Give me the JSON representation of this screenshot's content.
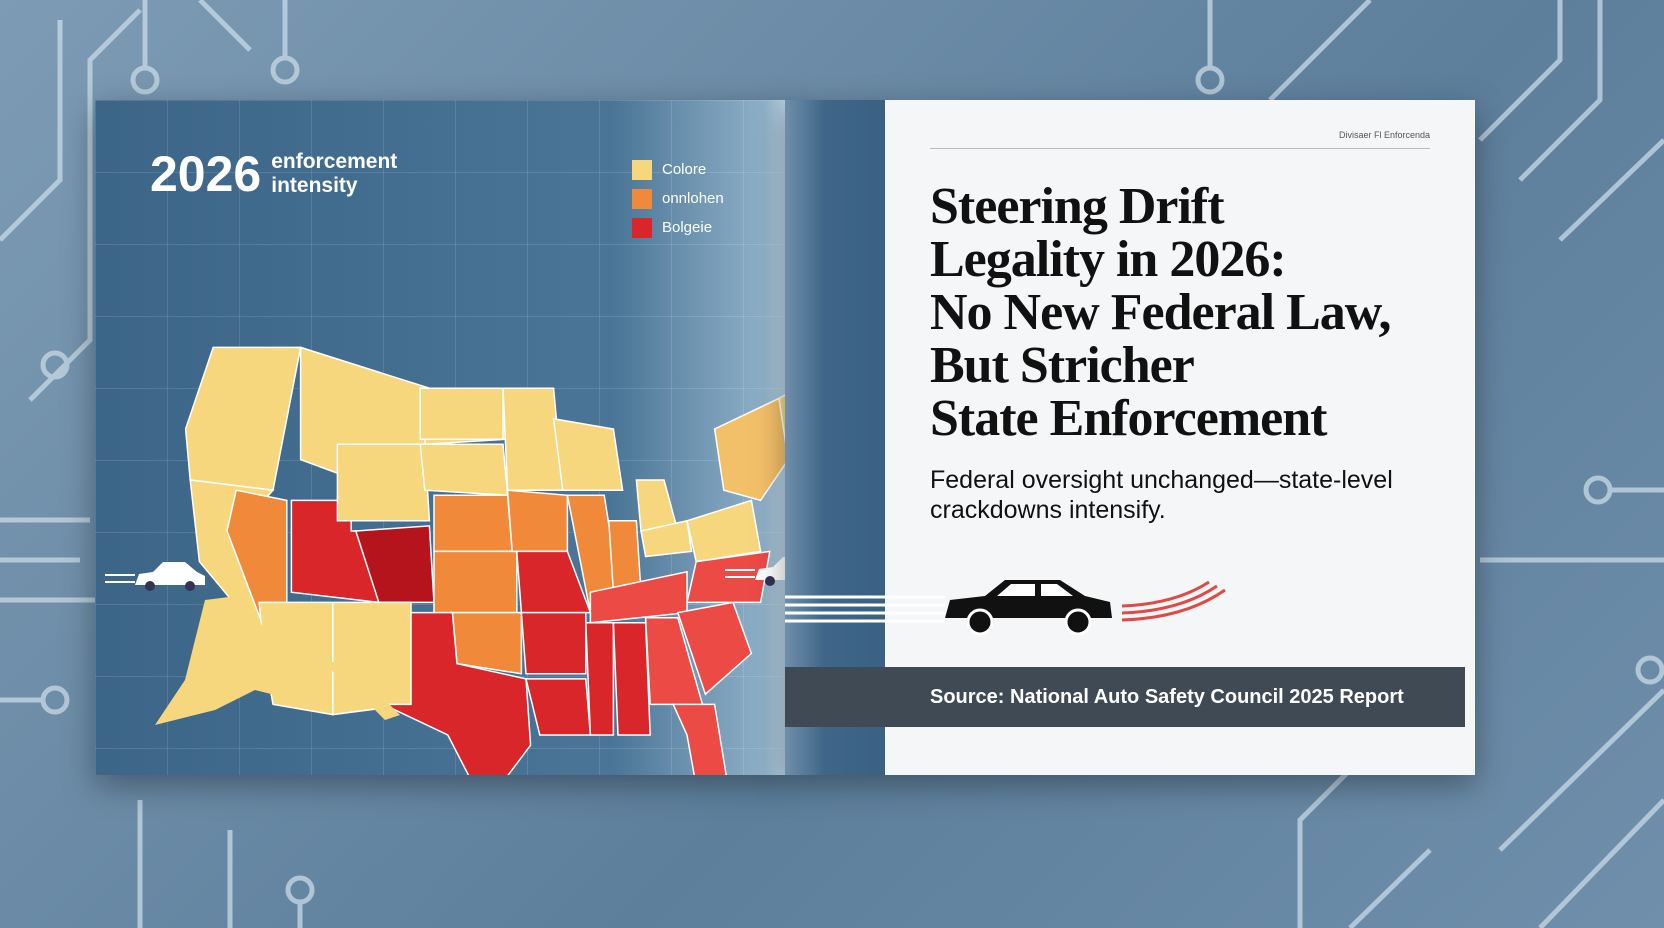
{
  "map_page": {
    "title_year": "2026",
    "title_line1": "enforcement",
    "title_line2": "intensity",
    "legend": [
      {
        "label": "Colore",
        "color": "#f7d77e"
      },
      {
        "label": "onnlohen",
        "color": "#f08a3a"
      },
      {
        "label": "Bolgeie",
        "color": "#d8262a"
      }
    ],
    "base_color": "#3f6a8a"
  },
  "article": {
    "header": "Divisaer Fl Enforcenda",
    "headline": [
      "Steering Drift",
      "Legality in 2026:",
      "No New Federal Law,",
      "But Stricher",
      "State Enforcement"
    ],
    "dek": "Federal oversight unchanged—state-level crackdowns intensify.",
    "source": "Source: National Auto Safety Council 2025 Report"
  }
}
